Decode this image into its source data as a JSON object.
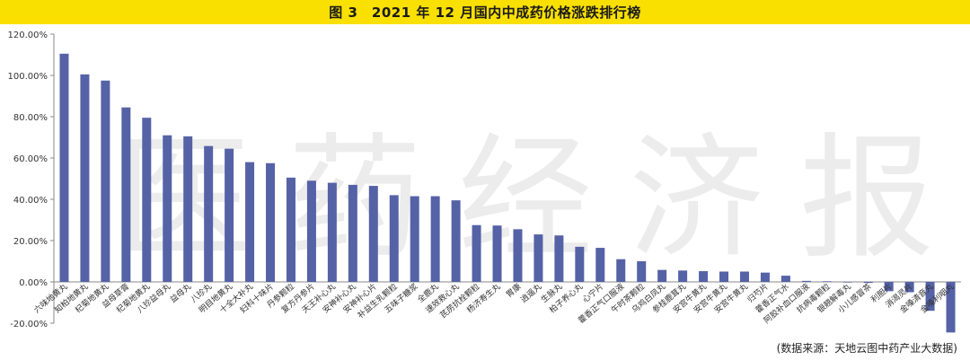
{
  "title": "图 3　2021 年 12 月国内中成药价格涨跌排行榜",
  "source": "(数据来源：天地云图中药产业大数据)",
  "watermark": "医药经济报",
  "colors": {
    "bar": "#5562a6",
    "title_bg": "#f9e000",
    "axis": "#888888"
  },
  "chart_data": {
    "type": "bar",
    "title": "图 3　2021 年 12 月国内中成药价格涨跌排行榜",
    "xlabel": "",
    "ylabel": "",
    "ylim": [
      -20,
      120
    ],
    "yticks": [
      -20,
      0,
      20,
      40,
      60,
      80,
      100,
      120
    ],
    "yticklabels": [
      "-20.00%",
      "0.00%",
      "20.00%",
      "40.00%",
      "60.00%",
      "80.00%",
      "100.00%",
      "120.00%"
    ],
    "grid": false,
    "categories": [
      "六味地黄丸",
      "知柏地黄丸",
      "杞菊地黄丸",
      "益母草膏",
      "杞菊地黄丸",
      "八珍益母丸",
      "益母丸",
      "八珍丸",
      "明目地黄丸",
      "十全大补丸",
      "妇科十味片",
      "丹参颗粒",
      "复方丹参片",
      "天王补心丸",
      "安神补心丸",
      "安神补心片",
      "补益生乳颗粒",
      "五味子糖浆",
      "全鹿丸",
      "速效救心丸",
      "芪苈抗栓颗粒",
      "杨济寿生丸",
      "胃康",
      "逍遥丸",
      "生脉丸",
      "柏子养心丸",
      "心宁片",
      "藿香正气口服液",
      "午时茶颗粒",
      "乌鸡白凤丸",
      "参桂鹿茸丸",
      "安宫牛黄丸",
      "安宫牛黄丸",
      "安宫牛黄丸",
      "归芍片",
      "藿香正气水",
      "阿胶补血口服液",
      "抗病毒颗粒",
      "银翘解毒丸",
      "小儿感冒茶",
      "利胆片",
      "消渴灵片",
      "金嗓清音丸",
      "金嗓利咽丸"
    ],
    "values": [
      110.5,
      100.5,
      97.5,
      84.5,
      79.5,
      71.0,
      70.5,
      65.8,
      64.5,
      58.0,
      57.5,
      50.5,
      49.0,
      48.0,
      47.0,
      46.5,
      42.0,
      41.5,
      41.5,
      39.5,
      27.5,
      27.3,
      25.5,
      23.0,
      22.5,
      17.0,
      16.5,
      11.0,
      10.0,
      5.8,
      5.5,
      5.2,
      5.0,
      5.0,
      4.5,
      3.0,
      0.5,
      0.3,
      -0.3,
      -0.5,
      -4.5,
      -5.0,
      -14.0,
      -24.5
    ]
  }
}
